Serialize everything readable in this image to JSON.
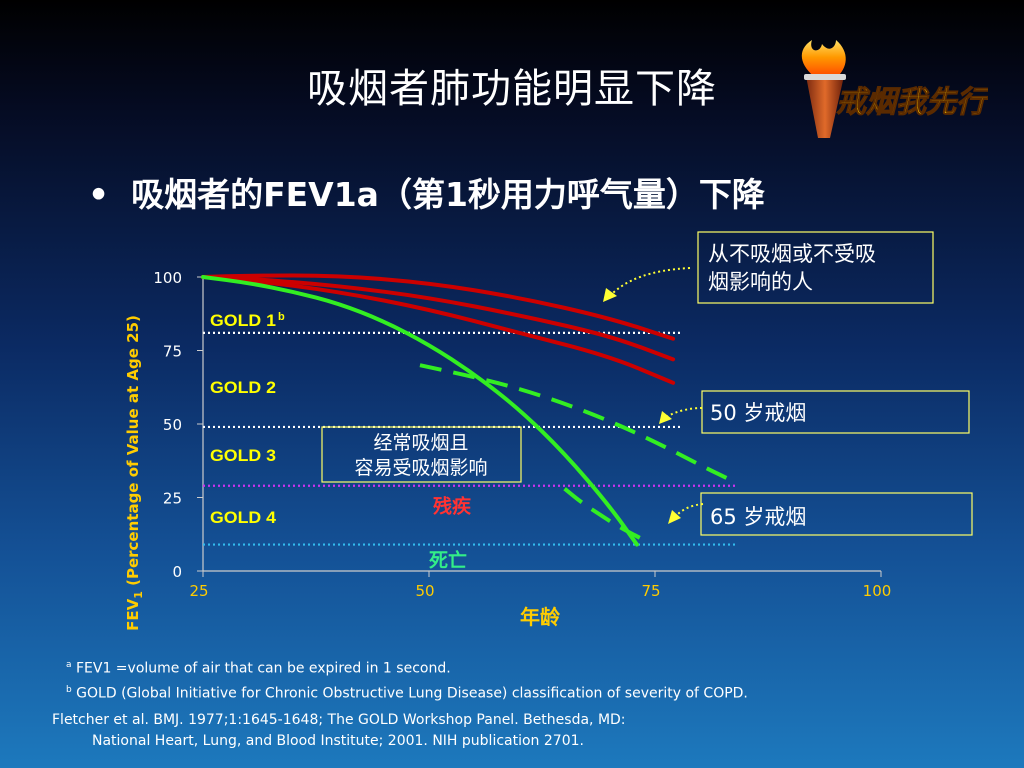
{
  "slide": {
    "title": "吸烟者肺功能明显下降",
    "bullet": "吸烟者的FEV1a（第1秒用力呼气量）下降",
    "logo_text": "戒烟我先行",
    "footnote_a": "FEV1 =volume of air that can be expired in 1 second.",
    "footnote_b": "GOLD (Global Initiative for Chronic Obstructive Lung Disease) classification of severity of COPD.",
    "reference_line1": "Fletcher et al. BMJ. 1977;1:1645-1648; The GOLD Workshop Panel. Bethesda, MD:",
    "reference_line2": "National Heart, Lung, and Blood Institute; 2001. NIH publication 2701."
  },
  "chart_data": {
    "type": "line",
    "xlabel": "年龄",
    "ylabel_main": "FEV",
    "ylabel_sub": "1",
    "ylabel_rest": " (Percentage of Value at Age 25)",
    "xlim": [
      25,
      100
    ],
    "ylim": [
      0,
      100
    ],
    "x_ticks": [
      "25",
      "50",
      "75",
      "100"
    ],
    "y_ticks": [
      "0",
      "25",
      "50",
      "75",
      "100"
    ],
    "colors": {
      "never": "#cc0000",
      "smoker": "#33ee22",
      "quit": "#33ee22",
      "gold_line": "#ffffff",
      "disability_line": "#cc33ee",
      "death_line": "#33bbee",
      "axis_text": "#ffcc00",
      "gold_text": "#ffff00",
      "disability_text": "#ff3333",
      "death_text": "#33ee88",
      "label_box": "#ffff66"
    },
    "gold_levels": [
      {
        "label": "GOLD 1",
        "sup": "b",
        "y": 81
      },
      {
        "label": "GOLD 2",
        "y": 49
      },
      {
        "label": "GOLD 3",
        "y": 29
      },
      {
        "label": "GOLD 4",
        "y": 9
      }
    ],
    "thresholds": {
      "disability": {
        "label": "残疾",
        "y": 29
      },
      "death": {
        "label": "死亡",
        "y": 9
      }
    },
    "series": [
      {
        "style": "solid-red",
        "x": [
          25,
          30,
          40,
          50,
          60,
          70,
          77
        ],
        "y": [
          100,
          100.5,
          100.5,
          98,
          93,
          86,
          79
        ]
      },
      {
        "style": "solid-red",
        "x": [
          25,
          30,
          40,
          50,
          60,
          70,
          77
        ],
        "y": [
          100,
          99.5,
          97,
          93,
          87,
          80,
          72
        ]
      },
      {
        "style": "solid-red",
        "x": [
          25,
          30,
          40,
          50,
          60,
          70,
          77
        ],
        "y": [
          100,
          99,
          95,
          89,
          81,
          73,
          64
        ]
      },
      {
        "style": "solid-green",
        "x": [
          25,
          30,
          35,
          40,
          45,
          50,
          55,
          60,
          65,
          70,
          73
        ],
        "y": [
          100,
          98,
          95,
          91,
          85,
          77,
          67,
          55,
          40,
          22,
          9
        ]
      },
      {
        "style": "dashed-green",
        "x": [
          49,
          55,
          60,
          65,
          70,
          75,
          80,
          84
        ],
        "y": [
          70,
          66,
          62,
          57,
          51,
          44,
          36,
          30
        ]
      },
      {
        "style": "dashed-green",
        "x": [
          65,
          67,
          69,
          71,
          73.5
        ],
        "y": [
          28,
          23,
          19,
          15,
          11
        ]
      }
    ],
    "callouts": {
      "never_smoked": {
        "line1": "从不吸烟或不受吸",
        "line2": "烟影响的人"
      },
      "quit_50": "50  岁戒烟",
      "quit_65": "65  岁戒烟",
      "regular": {
        "line1": "经常吸烟且",
        "line2": "容易受吸烟影响"
      }
    }
  }
}
